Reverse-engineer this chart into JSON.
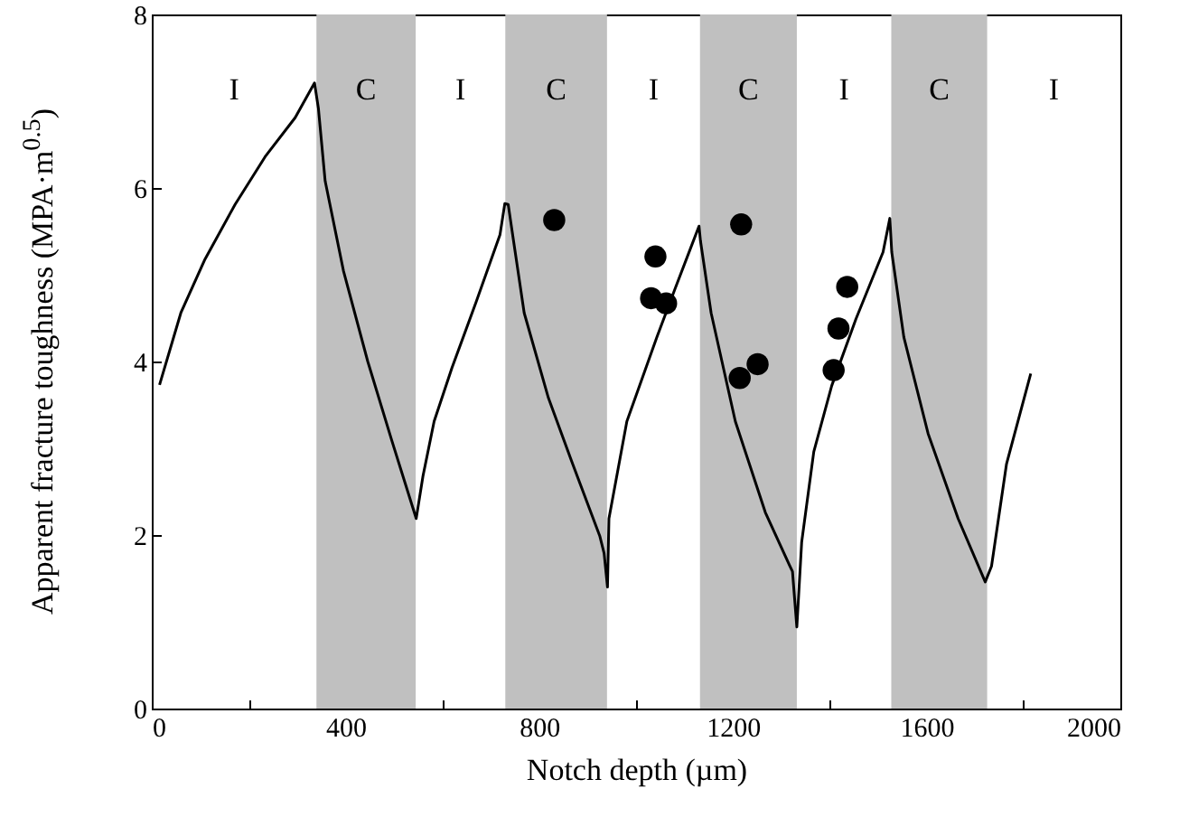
{
  "chart_data": {
    "type": "line",
    "xlabel": "Notch depth (µm)",
    "ylabel": "Apparent fracture toughness (MPA·m$^{0.5}$)",
    "xlim": [
      0,
      2000
    ],
    "ylim": [
      0,
      8
    ],
    "xticks": [
      0,
      {
        "value": 200,
        "label": null
      },
      400,
      {
        "value": 600,
        "label": null
      },
      800,
      {
        "value": 1000,
        "label": null
      },
      1200,
      {
        "value": 1400,
        "label": null
      },
      1600,
      {
        "value": 1800,
        "label": null
      },
      2000
    ],
    "yticks": [
      0,
      2,
      4,
      6,
      8
    ],
    "series": [
      {
        "color": "#000000",
        "line_style": "solid",
        "marker": "none",
        "x": [
          16,
          60,
          110,
          172,
          234,
          296,
          336,
          344,
          358,
          396,
          446,
          495,
          546,
          560,
          583,
          620,
          670,
          719,
          729,
          736,
          747,
          769,
          819,
          869,
          925,
          934,
          941,
          944,
          981,
          1043,
          1080,
          1130,
          1133,
          1155,
          1205,
          1267,
          1317,
          1323,
          1332,
          1342,
          1367,
          1404,
          1454,
          1510,
          1524,
          1528,
          1553,
          1603,
          1665,
          1721,
          1734,
          1765,
          1815
        ],
        "values": [
          3.73,
          4.56,
          5.18,
          5.81,
          6.36,
          6.81,
          7.21,
          6.92,
          6.08,
          5.04,
          4.0,
          3.1,
          2.19,
          2.68,
          3.31,
          3.93,
          4.69,
          5.46,
          5.82,
          5.81,
          5.39,
          4.56,
          3.58,
          2.82,
          1.99,
          1.79,
          1.4,
          2.19,
          3.31,
          4.28,
          4.83,
          5.56,
          5.39,
          4.56,
          3.31,
          2.26,
          1.65,
          1.58,
          0.94,
          1.92,
          2.96,
          3.72,
          4.49,
          5.26,
          5.65,
          5.26,
          4.28,
          3.17,
          2.19,
          1.46,
          1.64,
          2.82,
          3.86
        ]
      },
      {
        "type": "scatter",
        "color": "#000000",
        "marker": "circle",
        "x": [
          831,
          1040,
          1031,
          1062,
          1217,
          1214,
          1251,
          1408,
          1418,
          1436
        ],
        "values": [
          5.63,
          5.21,
          4.73,
          4.67,
          5.58,
          3.81,
          3.97,
          3.9,
          4.38,
          4.86
        ]
      }
    ],
    "bands": [
      {
        "axis": "x",
        "from": 340,
        "to": 545,
        "label": "C",
        "color": "#c0c0c0"
      },
      {
        "axis": "x",
        "from": 730,
        "to": 940,
        "label": "C",
        "color": "#c0c0c0"
      },
      {
        "axis": "x",
        "from": 1132,
        "to": 1332,
        "label": "C",
        "color": "#c0c0c0"
      },
      {
        "axis": "x",
        "from": 1527,
        "to": 1725,
        "label": "C",
        "color": "#c0c0c0"
      }
    ],
    "annotations": [
      "I",
      "I",
      "I",
      "I",
      "I"
    ]
  }
}
